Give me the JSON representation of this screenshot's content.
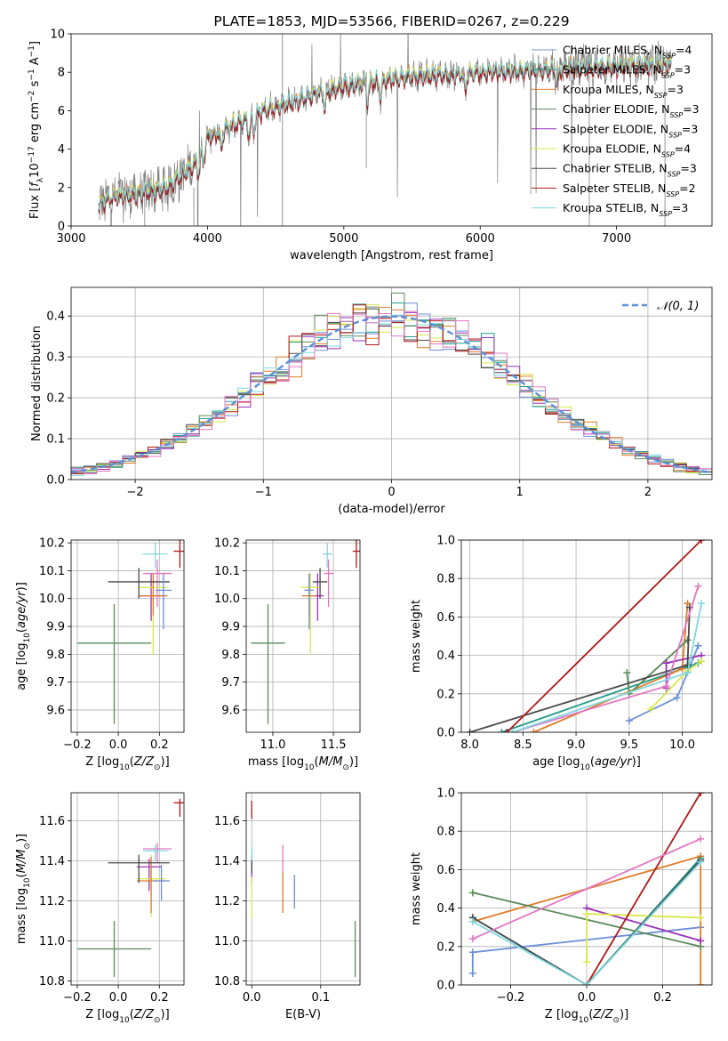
{
  "chart_data": [
    {
      "id": "spectrum",
      "type": "line",
      "title": "PLATE=1853, MJD=53566, FIBERID=0267, z=0.229",
      "xlabel": "wavelength [Angstrom, rest frame]",
      "ylabel": "Flux [fλ10⁻¹⁷ erg cm⁻² s⁻¹ A⁻¹]",
      "xlim": [
        3000,
        7700
      ],
      "ylim": [
        0,
        10
      ],
      "xticks": [
        3000,
        4000,
        5000,
        6000,
        7000
      ],
      "yticks": [
        0,
        2,
        4,
        6,
        8,
        10
      ],
      "data_color": "#808080",
      "data_trend": {
        "x": [
          3200,
          3300,
          3500,
          3700,
          3900,
          4000,
          4200,
          4400,
          4600,
          4800,
          5000,
          5200,
          5500,
          5800,
          6000,
          6300,
          6600,
          7000,
          7400
        ],
        "y": [
          1.1,
          1.5,
          1.7,
          2.0,
          3.2,
          4.6,
          5.3,
          6.0,
          6.4,
          6.9,
          7.3,
          7.5,
          7.8,
          7.9,
          8.0,
          8.1,
          8.2,
          8.3,
          8.4
        ]
      },
      "legend_placement": "upper right",
      "legend": [
        {
          "label": "Chabrier MILES, N",
          "sub": "SSP",
          "count": "=4",
          "color": "#6b8fd6"
        },
        {
          "label": "Salpeter MILES, N",
          "sub": "SSP",
          "count": "=3",
          "color": "#1f9b8a"
        },
        {
          "label": "Kroupa MILES, N",
          "sub": "SSP",
          "count": "=3",
          "color": "#e07b28"
        },
        {
          "label": "Chabrier ELODIE, N",
          "sub": "SSP",
          "count": "=3",
          "color": "#5b8a5b"
        },
        {
          "label": "Salpeter ELODIE, N",
          "sub": "SSP",
          "count": "=3",
          "color": "#9b30b8"
        },
        {
          "label": "Kroupa ELODIE, N",
          "sub": "SSP",
          "count": "=4",
          "color": "#d8e84a"
        },
        {
          "label": "Chabrier STELIB, N",
          "sub": "SSP",
          "count": "=3",
          "color": "#4a4a4a"
        },
        {
          "label": "Salpeter STELIB, N",
          "sub": "SSP",
          "count": "=2",
          "color": "#b01818"
        },
        {
          "label": "Kroupa STELIB, N",
          "sub": "SSP",
          "count": "=3",
          "color": "#7fd8e0"
        }
      ]
    },
    {
      "id": "residuals",
      "type": "histogram",
      "xlabel": "(data-model)/error",
      "ylabel": "Normed distribution",
      "xlim": [
        -2.5,
        2.5
      ],
      "ylim": [
        0,
        0.47
      ],
      "xticks": [
        -2,
        -1,
        0,
        1,
        2
      ],
      "xticklabels": [
        "−2",
        "−1",
        "0",
        "1",
        "2"
      ],
      "yticks": [
        0.0,
        0.1,
        0.2,
        0.3,
        0.4
      ],
      "yticklabels": [
        "0.0",
        "0.1",
        "0.2",
        "0.3",
        "0.4"
      ],
      "bin_width": 0.1,
      "bin_start": -2.5,
      "bins": 50,
      "gaussian_label": "𝒩(0, 1)",
      "gaussian_color": "#5b8fd6",
      "legend_placement": "upper right"
    },
    {
      "id": "age-Z",
      "type": "scatter",
      "xlabel": "Z [log10(Z/Z☉)]",
      "ylabel": "age [log10(age/yr)]",
      "xlim": [
        -0.23,
        0.32
      ],
      "ylim": [
        9.52,
        10.21
      ],
      "xticks": [
        -0.2,
        0.0,
        0.2
      ],
      "xticklabels": [
        "−0.2",
        "0.0",
        "0.2"
      ],
      "yticks": [
        9.6,
        9.7,
        9.8,
        9.9,
        10.0,
        10.1,
        10.2
      ],
      "yticklabels": [
        "9.6",
        "9.7",
        "9.8",
        "9.9",
        "10.0",
        "10.1",
        "10.2"
      ],
      "points": [
        {
          "x": -0.02,
          "y": 9.84,
          "xerr": 0.18,
          "yerr": [
            0.29,
            0.14
          ],
          "color": "#5b8a5b"
        },
        {
          "x": 0.16,
          "y": 10.01,
          "xerr": 0.06,
          "yerr": [
            0.09,
            0.08
          ],
          "color": "#9b30b8"
        },
        {
          "x": 0.19,
          "y": 10.09,
          "xerr": 0.07,
          "yerr": [
            0.12,
            0.05
          ],
          "color": "#e377c2"
        },
        {
          "x": 0.17,
          "y": 10.04,
          "xerr": 0.07,
          "yerr": [
            0.24,
            0.05
          ],
          "color": "#d8e84a"
        },
        {
          "x": 0.17,
          "y": 10.01,
          "xerr": 0.07,
          "yerr": [
            0.07,
            0.08
          ],
          "color": "#e07b28"
        },
        {
          "x": 0.1,
          "y": 10.06,
          "xerr": 0.15,
          "yerr": [
            0.06,
            0.05
          ],
          "color": "#4a4a4a"
        },
        {
          "x": 0.22,
          "y": 10.03,
          "xerr": 0.04,
          "yerr": [
            0.14,
            0.06
          ],
          "color": "#6b8fd6"
        },
        {
          "x": 0.18,
          "y": 10.16,
          "xerr": 0.06,
          "yerr": [
            0.05,
            0.04
          ],
          "color": "#7fd8e0"
        },
        {
          "x": 0.3,
          "y": 10.17,
          "xerr": 0.03,
          "yerr": [
            0.06,
            0.04
          ],
          "color": "#b01818"
        }
      ]
    },
    {
      "id": "age-mass",
      "type": "scatter",
      "xlabel": "mass [log10(M/M☉)]",
      "ylabel": "",
      "xlim": [
        10.78,
        11.72
      ],
      "ylim": [
        9.52,
        10.21
      ],
      "xticks": [
        11.0,
        11.5
      ],
      "xticklabels": [
        "11.0",
        "11.5"
      ],
      "yticks": [
        9.6,
        9.7,
        9.8,
        9.9,
        10.0,
        10.1,
        10.2
      ],
      "yticklabels": [
        "9.6",
        "9.7",
        "9.8",
        "9.9",
        "10.0",
        "10.1",
        "10.2"
      ],
      "points": [
        {
          "x": 10.96,
          "y": 9.84,
          "xerr": 0.14,
          "yerr": [
            0.29,
            0.14
          ],
          "color": "#5b8a5b"
        },
        {
          "x": 11.37,
          "y": 10.01,
          "xerr": 0.05,
          "yerr": [
            0.09,
            0.08
          ],
          "color": "#9b30b8"
        },
        {
          "x": 11.46,
          "y": 10.09,
          "xerr": 0.04,
          "yerr": [
            0.12,
            0.05
          ],
          "color": "#e377c2"
        },
        {
          "x": 11.31,
          "y": 10.04,
          "xerr": 0.08,
          "yerr": [
            0.24,
            0.05
          ],
          "color": "#d8e84a"
        },
        {
          "x": 11.3,
          "y": 10.01,
          "xerr": 0.06,
          "yerr": [
            0.07,
            0.08
          ],
          "color": "#e07b28"
        },
        {
          "x": 11.39,
          "y": 10.06,
          "xerr": 0.06,
          "yerr": [
            0.06,
            0.05
          ],
          "color": "#4a4a4a"
        },
        {
          "x": 11.3,
          "y": 10.03,
          "xerr": 0.04,
          "yerr": [
            0.14,
            0.06
          ],
          "color": "#6b8fd6"
        },
        {
          "x": 11.45,
          "y": 10.16,
          "xerr": 0.04,
          "yerr": [
            0.05,
            0.04
          ],
          "color": "#7fd8e0"
        },
        {
          "x": 11.69,
          "y": 10.17,
          "xerr": 0.03,
          "yerr": [
            0.06,
            0.04
          ],
          "color": "#b01818"
        }
      ]
    },
    {
      "id": "mass-weight-age",
      "type": "line",
      "xlabel": "age [log10(age/yr)]",
      "ylabel": "mass weight",
      "xlim": [
        7.92,
        10.28
      ],
      "ylim": [
        0,
        1
      ],
      "xticks": [
        8.0,
        8.5,
        9.0,
        9.5,
        10.0
      ],
      "xticklabels": [
        "8.0",
        "8.5",
        "9.0",
        "9.5",
        "10.0"
      ],
      "yticks": [
        0.0,
        0.2,
        0.4,
        0.6,
        0.8,
        1.0
      ],
      "yticklabels": [
        "0.0",
        "0.2",
        "0.4",
        "0.6",
        "0.8",
        "1.0"
      ],
      "series": [
        {
          "color": "#6b8fd6",
          "x": [
            9.5,
            9.95,
            10.05,
            10.15
          ],
          "y": [
            0.06,
            0.18,
            0.31,
            0.45
          ]
        },
        {
          "color": "#1f9b8a",
          "x": [
            8.3,
            10.05,
            10.15
          ],
          "y": [
            0.0,
            0.34,
            0.36
          ]
        },
        {
          "color": "#e07b28",
          "x": [
            8.6,
            10.0,
            10.05
          ],
          "y": [
            0.0,
            0.33,
            0.67
          ]
        },
        {
          "color": "#5b8a5b",
          "x": [
            9.48,
            9.5,
            10.05
          ],
          "y": [
            0.31,
            0.2,
            0.48
          ]
        },
        {
          "color": "#9b30b8",
          "x": [
            9.85,
            9.85,
            10.18
          ],
          "y": [
            0.23,
            0.36,
            0.4
          ]
        },
        {
          "color": "#d8e84a",
          "x": [
            9.7,
            10.05,
            10.18
          ],
          "y": [
            0.12,
            0.32,
            0.37
          ]
        },
        {
          "color": "#4a4a4a",
          "x": [
            8.0,
            10.05,
            10.07
          ],
          "y": [
            0.0,
            0.35,
            0.65
          ]
        },
        {
          "color": "#b01818",
          "x": [
            8.35,
            10.18
          ],
          "y": [
            0.0,
            1.0
          ]
        },
        {
          "color": "#e377c2",
          "x": [
            8.4,
            9.85,
            10.15
          ],
          "y": [
            0.0,
            0.24,
            0.76
          ]
        },
        {
          "color": "#7fd8e0",
          "x": [
            8.4,
            10.05,
            10.18
          ],
          "y": [
            0.0,
            0.31,
            0.67
          ]
        }
      ]
    },
    {
      "id": "mass-Z",
      "type": "scatter",
      "xlabel": "Z [log10(Z/Z☉)]",
      "ylabel": "mass [log10(M/M☉)]",
      "xlim": [
        -0.23,
        0.32
      ],
      "ylim": [
        10.78,
        11.74
      ],
      "xticks": [
        -0.2,
        0.0,
        0.2
      ],
      "xticklabels": [
        "−0.2",
        "0.0",
        "0.2"
      ],
      "yticks": [
        10.8,
        11.0,
        11.2,
        11.4,
        11.6
      ],
      "yticklabels": [
        "10.8",
        "11.0",
        "11.2",
        "11.4",
        "11.6"
      ],
      "points": [
        {
          "x": -0.02,
          "y": 10.96,
          "xerr": 0.18,
          "yerr": [
            0.14,
            0.14
          ],
          "color": "#5b8a5b"
        },
        {
          "x": 0.15,
          "y": 11.37,
          "xerr": 0.06,
          "yerr": [
            0.12,
            0.04
          ],
          "color": "#9b30b8"
        },
        {
          "x": 0.19,
          "y": 11.46,
          "xerr": 0.07,
          "yerr": [
            0.07,
            0.03
          ],
          "color": "#e377c2"
        },
        {
          "x": 0.16,
          "y": 11.31,
          "xerr": 0.07,
          "yerr": [
            0.19,
            0.12
          ],
          "color": "#d8e84a"
        },
        {
          "x": 0.16,
          "y": 11.3,
          "xerr": 0.07,
          "yerr": [
            0.16,
            0.12
          ],
          "color": "#e07b28"
        },
        {
          "x": 0.1,
          "y": 11.39,
          "xerr": 0.15,
          "yerr": [
            0.1,
            0.04
          ],
          "color": "#4a4a4a"
        },
        {
          "x": 0.21,
          "y": 11.3,
          "xerr": 0.04,
          "yerr": [
            0.1,
            0.08
          ],
          "color": "#6b8fd6"
        },
        {
          "x": 0.18,
          "y": 11.45,
          "xerr": 0.06,
          "yerr": [
            0.05,
            0.03
          ],
          "color": "#7fd8e0"
        },
        {
          "x": 0.3,
          "y": 11.69,
          "xerr": 0.03,
          "yerr": [
            0.07,
            0.02
          ],
          "color": "#b01818"
        }
      ]
    },
    {
      "id": "mass-ebv",
      "type": "scatter",
      "xlabel": "E(B-V)",
      "ylabel": "",
      "xlim": [
        -0.008,
        0.157
      ],
      "ylim": [
        10.78,
        11.74
      ],
      "xticks": [
        0.0,
        0.1
      ],
      "xticklabels": [
        "0.0",
        "0.1"
      ],
      "yticks": [
        10.8,
        11.0,
        11.2,
        11.4,
        11.6
      ],
      "yticklabels": [
        "10.8",
        "11.0",
        "11.2",
        "11.4",
        "11.6"
      ],
      "points": [
        {
          "x": 0.15,
          "y": 10.96,
          "xerr": 0.0,
          "yerr": [
            0.14,
            0.14
          ],
          "color": "#5b8a5b"
        },
        {
          "x": 0.0,
          "y": 11.37,
          "xerr": 0.0,
          "yerr": [
            0.08,
            0.06
          ],
          "color": "#9b30b8"
        },
        {
          "x": 0.045,
          "y": 11.4,
          "xerr": 0.0,
          "yerr": [
            0.06,
            0.08
          ],
          "color": "#e377c2"
        },
        {
          "x": 0.0,
          "y": 11.2,
          "xerr": 0.0,
          "yerr": [
            0.08,
            0.12
          ],
          "color": "#d8e84a"
        },
        {
          "x": 0.045,
          "y": 11.24,
          "xerr": 0.0,
          "yerr": [
            0.1,
            0.1
          ],
          "color": "#e07b28"
        },
        {
          "x": 0.0,
          "y": 11.39,
          "xerr": 0.0,
          "yerr": [
            0.05,
            0.04
          ],
          "color": "#4a4a4a"
        },
        {
          "x": 0.062,
          "y": 11.25,
          "xerr": 0.0,
          "yerr": [
            0.09,
            0.08
          ],
          "color": "#6b8fd6"
        },
        {
          "x": 0.0,
          "y": 11.44,
          "xerr": 0.0,
          "yerr": [
            0.04,
            0.03
          ],
          "color": "#7fd8e0"
        },
        {
          "x": 0.0,
          "y": 11.66,
          "xerr": 0.0,
          "yerr": [
            0.05,
            0.04
          ],
          "color": "#b01818"
        }
      ]
    },
    {
      "id": "mass-weight-Z",
      "type": "line",
      "xlabel": "Z [log10(Z/Z☉)]",
      "ylabel": "mass weight",
      "xlim": [
        -0.33,
        0.33
      ],
      "ylim": [
        0,
        1
      ],
      "xticks": [
        -0.2,
        0.0,
        0.2
      ],
      "xticklabels": [
        "−0.2",
        "0.0",
        "0.2"
      ],
      "yticks": [
        0.0,
        0.2,
        0.4,
        0.6,
        0.8,
        1.0
      ],
      "yticklabels": [
        "0.0",
        "0.2",
        "0.4",
        "0.6",
        "0.8",
        "1.0"
      ],
      "series": [
        {
          "color": "#6b8fd6",
          "x": [
            -0.3,
            -0.3,
            0.3
          ],
          "y": [
            0.06,
            0.17,
            0.3
          ]
        },
        {
          "color": "#1f9b8a",
          "x": [
            -0.3,
            0.0,
            0.3
          ],
          "y": [
            0.35,
            0.0,
            0.66
          ]
        },
        {
          "color": "#e07b28",
          "x": [
            -0.3,
            0.3,
            0.3
          ],
          "y": [
            0.33,
            0.67,
            0.0
          ]
        },
        {
          "color": "#5b8a5b",
          "x": [
            -0.3,
            0.3
          ],
          "y": [
            0.48,
            0.2
          ]
        },
        {
          "color": "#9b30b8",
          "x": [
            0.0,
            0.3
          ],
          "y": [
            0.4,
            0.23
          ]
        },
        {
          "color": "#d8e84a",
          "x": [
            0.0,
            0.0,
            0.3
          ],
          "y": [
            0.12,
            0.37,
            0.35
          ]
        },
        {
          "color": "#4a4a4a",
          "x": [
            -0.3,
            0.0,
            0.3
          ],
          "y": [
            0.35,
            0.0,
            0.65
          ]
        },
        {
          "color": "#b01818",
          "x": [
            0.0,
            0.3
          ],
          "y": [
            0.0,
            1.0
          ]
        },
        {
          "color": "#e377c2",
          "x": [
            -0.3,
            0.3
          ],
          "y": [
            0.24,
            0.76
          ]
        },
        {
          "color": "#7fd8e0",
          "x": [
            -0.3,
            0.0,
            0.3
          ],
          "y": [
            0.33,
            0.0,
            0.64
          ]
        }
      ]
    }
  ]
}
